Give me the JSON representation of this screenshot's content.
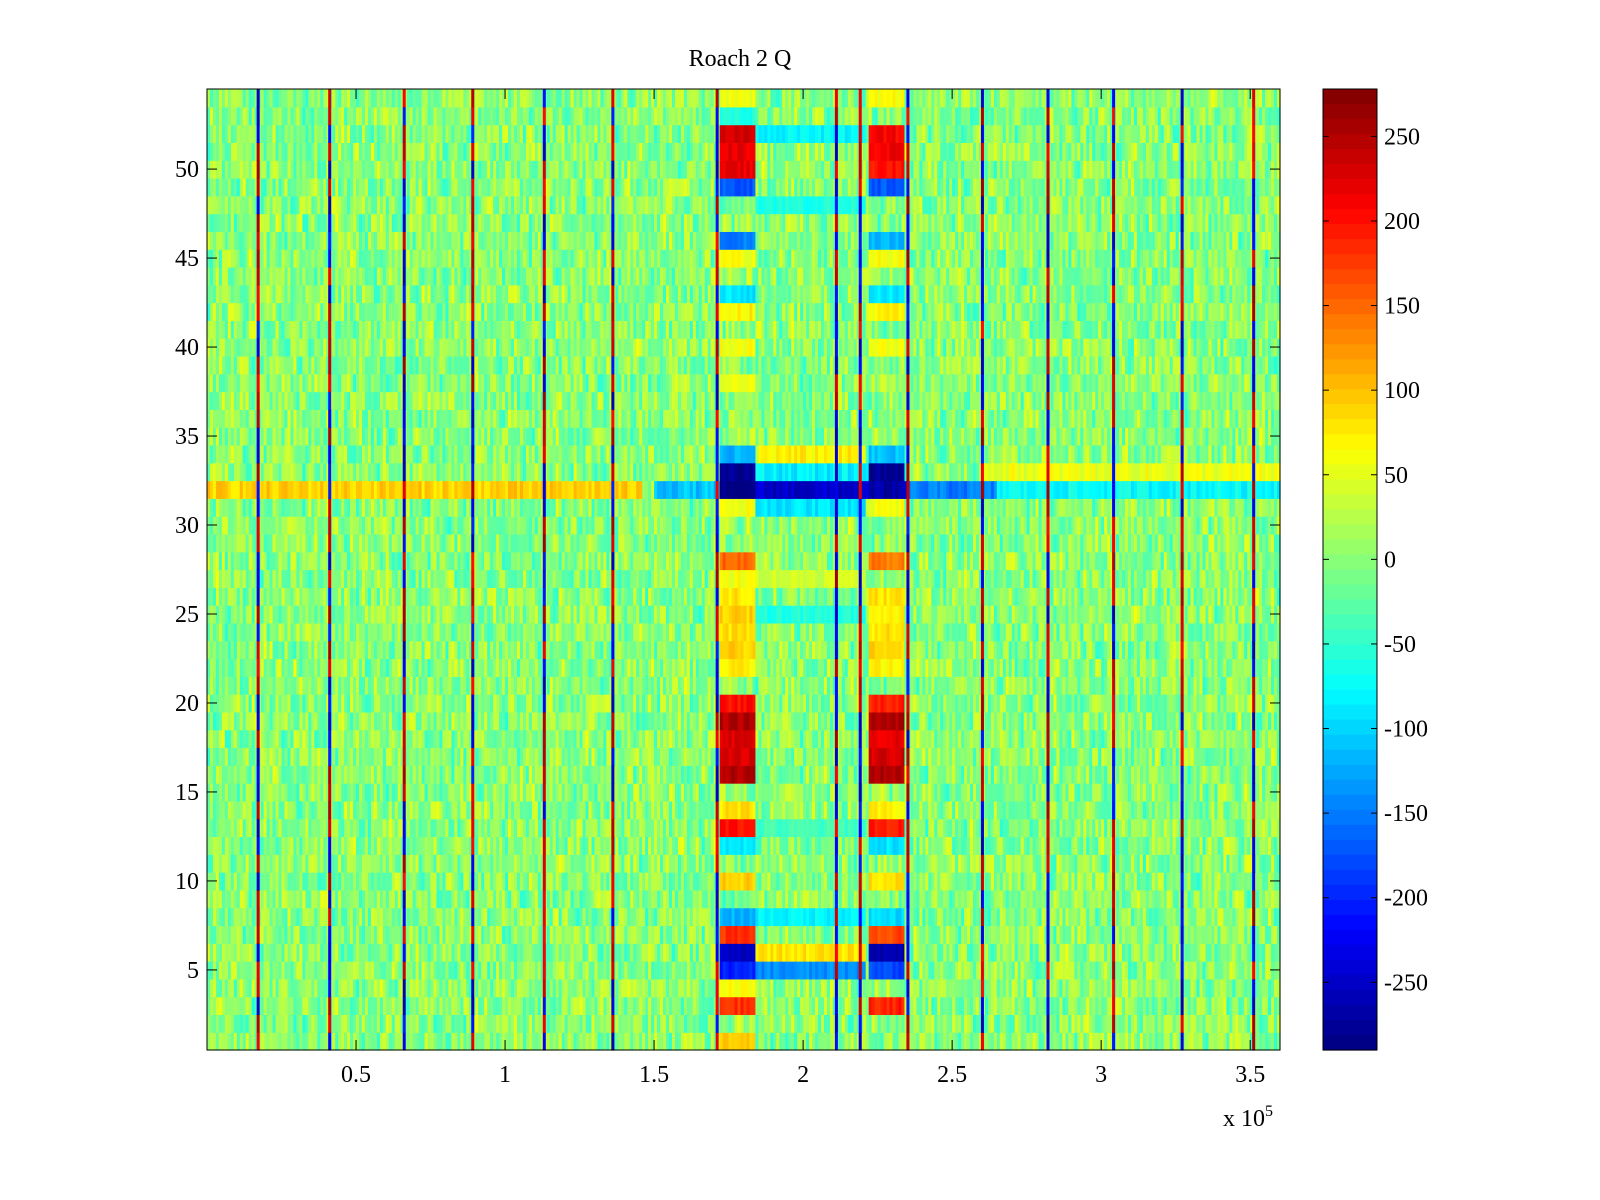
{
  "chart_data": {
    "type": "heatmap",
    "title": "Roach 2 Q",
    "xlabel": "",
    "ylabel": "",
    "x_exponent_label": "x 10",
    "x_exponent": "5",
    "xlim": [
      0,
      3.6
    ],
    "ylim": [
      0.5,
      54.5
    ],
    "x_ticks": [
      0.5,
      1,
      1.5,
      2,
      2.5,
      3,
      3.5
    ],
    "x_tick_labels": [
      "0.5",
      "1",
      "1.5",
      "2",
      "2.5",
      "3",
      "3.5"
    ],
    "y_ticks": [
      5,
      10,
      15,
      20,
      25,
      30,
      35,
      40,
      45,
      50
    ],
    "y_tick_labels": [
      "5",
      "10",
      "15",
      "20",
      "25",
      "30",
      "35",
      "40",
      "45",
      "50"
    ],
    "colorbar": {
      "colormap": "jet",
      "range": [
        -290,
        278
      ],
      "ticks": [
        -250,
        -200,
        -150,
        -100,
        -50,
        0,
        50,
        100,
        150,
        200,
        250
      ],
      "tick_labels": [
        "-250",
        "-200",
        "-150",
        "-100",
        "-50",
        "0",
        "50",
        "100",
        "150",
        "200",
        "250"
      ]
    },
    "n_rows": 54,
    "background_mean": 0,
    "periodic_spike_columns": [
      0.17,
      0.41,
      0.66,
      0.89,
      1.13,
      1.36,
      1.71,
      2.11,
      2.19,
      2.35,
      2.6,
      2.82,
      3.04,
      3.27,
      3.51
    ],
    "row_features": [
      {
        "row": 32,
        "x_range": [
          0.0,
          1.45
        ],
        "value": 90
      },
      {
        "row": 32,
        "x_range": [
          1.5,
          1.72
        ],
        "value": -110
      },
      {
        "row": 32,
        "x_range": [
          1.73,
          1.84
        ],
        "value": -285
      },
      {
        "row": 32,
        "x_range": [
          1.84,
          2.35
        ],
        "value": -250
      },
      {
        "row": 32,
        "x_range": [
          2.35,
          2.65
        ],
        "value": -150
      },
      {
        "row": 32,
        "x_range": [
          2.65,
          3.6
        ],
        "value": -75
      },
      {
        "row": 33,
        "x_range": [
          1.73,
          1.84
        ],
        "value": -280
      },
      {
        "row": 33,
        "x_range": [
          1.84,
          2.23
        ],
        "value": -85
      },
      {
        "row": 33,
        "x_range": [
          2.23,
          2.33
        ],
        "value": -280
      },
      {
        "row": 33,
        "x_range": [
          2.6,
          3.6
        ],
        "value": 55
      },
      {
        "row": 34,
        "x_range": [
          1.85,
          2.2
        ],
        "value": 70
      }
    ],
    "band_columns": [
      {
        "x_range": [
          1.72,
          1.83
        ],
        "rows": {
          "1": 90,
          "3": 180,
          "4": 60,
          "5": -200,
          "6": -250,
          "7": 180,
          "8": -120,
          "10": 90,
          "12": -90,
          "13": 200,
          "14": 80,
          "16": 250,
          "17": 230,
          "18": 230,
          "19": 250,
          "20": 200,
          "22": 70,
          "23": 90,
          "24": 80,
          "25": 90,
          "26": 80,
          "27": 60,
          "28": 150,
          "31": 60,
          "32": -285,
          "33": -280,
          "34": -120,
          "38": 50,
          "40": 60,
          "42": 70,
          "43": -90,
          "45": 60,
          "46": -150,
          "49": -170,
          "50": 220,
          "51": 220,
          "52": 230,
          "53": -60,
          "54": 60
        }
      },
      {
        "x_range": [
          2.22,
          2.33
        ],
        "rows": {
          "3": 190,
          "5": -180,
          "6": -260,
          "7": 170,
          "8": -100,
          "10": 80,
          "12": -90,
          "13": 190,
          "14": 70,
          "16": 250,
          "17": 230,
          "18": 220,
          "19": 250,
          "20": 190,
          "22": 70,
          "23": 90,
          "24": 80,
          "25": 70,
          "26": 80,
          "28": 140,
          "31": 60,
          "32": -270,
          "33": -280,
          "34": -110,
          "40": 60,
          "42": 70,
          "43": -90,
          "45": 60,
          "46": -120,
          "49": -170,
          "50": 200,
          "51": 210,
          "52": 210,
          "54": 60
        }
      },
      {
        "x_range": [
          1.84,
          2.2
        ],
        "rows": {
          "5": -140,
          "6": 80,
          "8": -80,
          "13": -40,
          "25": -60,
          "27": 40,
          "31": -90,
          "48": -60,
          "52": -80
        }
      }
    ]
  }
}
